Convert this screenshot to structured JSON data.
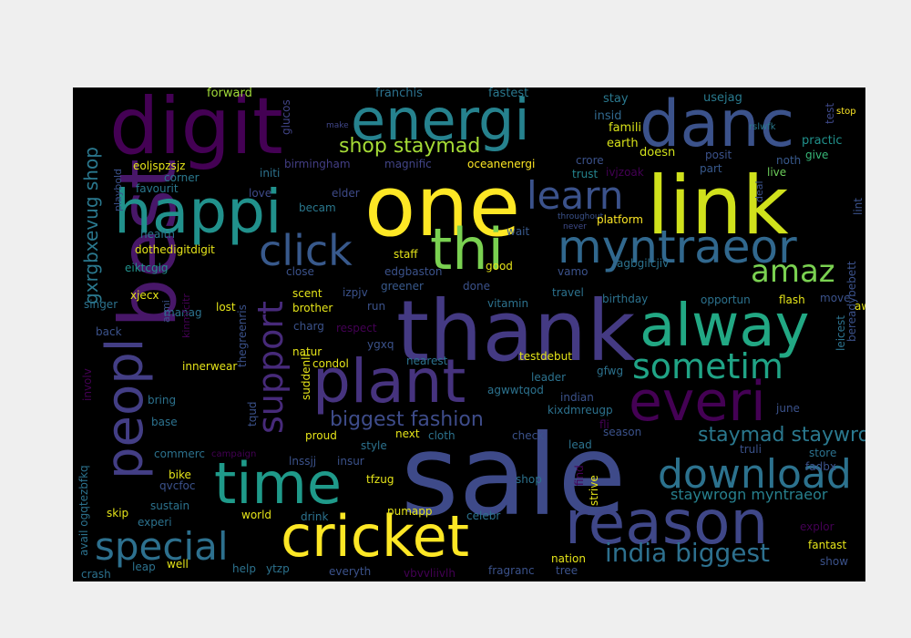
{
  "words": [
    {
      "t": "sale",
      "c": "#3e4a89"
    },
    {
      "t": "thank",
      "c": "#443a83"
    },
    {
      "t": "one",
      "c": "#fde725"
    },
    {
      "t": "link",
      "c": "#d0e11c"
    },
    {
      "t": "digit",
      "c": "#440154"
    },
    {
      "t": "best",
      "c": "#481769"
    },
    {
      "t": "energi",
      "c": "#26828e"
    },
    {
      "t": "danc",
      "c": "#3b528b"
    },
    {
      "t": "happi",
      "c": "#21918c"
    },
    {
      "t": "alway",
      "c": "#22a884"
    },
    {
      "t": "plant",
      "c": "#46337e"
    },
    {
      "t": "time",
      "c": "#1f9a8a"
    },
    {
      "t": "reason",
      "c": "#3f4788"
    },
    {
      "t": "cricket",
      "c": "#fde725"
    },
    {
      "t": "peopl",
      "c": "#433e85"
    },
    {
      "t": "everi",
      "c": "#440154"
    },
    {
      "t": "thi",
      "c": "#7ad151"
    },
    {
      "t": "myntraeor",
      "c": "#31688e"
    },
    {
      "t": "download",
      "c": "#2c728e"
    },
    {
      "t": "special",
      "c": "#2d708e"
    },
    {
      "t": "click",
      "c": "#38598c"
    },
    {
      "t": "learn",
      "c": "#3b528b"
    },
    {
      "t": "sometim",
      "c": "#20a486"
    },
    {
      "t": "amaz",
      "c": "#7ad151"
    },
    {
      "t": "support",
      "c": "#472a7a"
    },
    {
      "t": "india biggest",
      "c": "#2d708e"
    },
    {
      "t": "biggest fashion",
      "c": "#3e4c8a"
    },
    {
      "t": "staymad staywrogn",
      "c": "#2a788e"
    },
    {
      "t": "shop staymad",
      "c": "#a5db36"
    },
    {
      "t": "staywrogn myntraeor",
      "c": "#27808e"
    },
    {
      "t": "gxrgbxevug shop",
      "c": "#2a788e"
    },
    {
      "t": "forward",
      "c": "#a0da39"
    },
    {
      "t": "glucos",
      "c": "#414487"
    },
    {
      "t": "franchis",
      "c": "#2c728e"
    },
    {
      "t": "fastest",
      "c": "#2a788e"
    },
    {
      "t": "stay",
      "c": "#2a788e"
    },
    {
      "t": "usejag",
      "c": "#297a8e"
    },
    {
      "t": "test",
      "c": "#3e4989"
    },
    {
      "t": "stop",
      "c": "#fde725"
    },
    {
      "t": "make",
      "c": "#404688"
    },
    {
      "t": "insid",
      "c": "#31688e"
    },
    {
      "t": "famili",
      "c": "#d8e219"
    },
    {
      "t": "rslwfk",
      "c": "#2a788e"
    },
    {
      "t": "earth",
      "c": "#d8e219"
    },
    {
      "t": "practic",
      "c": "#21918c"
    },
    {
      "t": "eoljspzsjz",
      "c": "#e5e419"
    },
    {
      "t": "corner",
      "c": "#2a788e"
    },
    {
      "t": "initi",
      "c": "#2c728e"
    },
    {
      "t": "birmingham",
      "c": "#433e85"
    },
    {
      "t": "magnific",
      "c": "#414487"
    },
    {
      "t": "oceanenergi",
      "c": "#fde725"
    },
    {
      "t": "crore",
      "c": "#3b528b"
    },
    {
      "t": "doesn",
      "c": "#d2e21b"
    },
    {
      "t": "posit",
      "c": "#3b528b"
    },
    {
      "t": "noth",
      "c": "#38598c"
    },
    {
      "t": "give",
      "c": "#37b878"
    },
    {
      "t": "trust",
      "c": "#25848e"
    },
    {
      "t": "ivjzoak",
      "c": "#440154"
    },
    {
      "t": "part",
      "c": "#38598c"
    },
    {
      "t": "live",
      "c": "#6ccd5a"
    },
    {
      "t": "playbold",
      "c": "#3b528b"
    },
    {
      "t": "favourit",
      "c": "#2a788e"
    },
    {
      "t": "love",
      "c": "#3e4a89"
    },
    {
      "t": "elder",
      "c": "#3e4a89"
    },
    {
      "t": "becam",
      "c": "#2a788e"
    },
    {
      "t": "deal",
      "c": "#3b528b"
    },
    {
      "t": "lint",
      "c": "#3b528b"
    },
    {
      "t": "throughout",
      "c": "#3b528b"
    },
    {
      "t": "never",
      "c": "#3e4a89"
    },
    {
      "t": "platform",
      "c": "#fde725"
    },
    {
      "t": "wait",
      "c": "#38598c"
    },
    {
      "t": "health",
      "c": "#2a788e"
    },
    {
      "t": "dothedigitdigit",
      "c": "#e5e419"
    },
    {
      "t": "staff",
      "c": "#e5e419"
    },
    {
      "t": "agbgilcjiv",
      "c": "#2c728e"
    },
    {
      "t": "eiktcglg",
      "c": "#21918c"
    },
    {
      "t": "close",
      "c": "#3b528b"
    },
    {
      "t": "edgbaston",
      "c": "#3b528b"
    },
    {
      "t": "vamo",
      "c": "#3b528b"
    },
    {
      "t": "greener",
      "c": "#38598c"
    },
    {
      "t": "xjecx",
      "c": "#e5e419"
    },
    {
      "t": "scent",
      "c": "#e5e419"
    },
    {
      "t": "izpjv",
      "c": "#3b528b"
    },
    {
      "t": "done",
      "c": "#3b528b"
    },
    {
      "t": "travel",
      "c": "#2c728e"
    },
    {
      "t": "opportun",
      "c": "#2c728e"
    },
    {
      "t": "flash",
      "c": "#e5e419"
    },
    {
      "t": "move",
      "c": "#3b528b"
    },
    {
      "t": "singer",
      "c": "#2c728e"
    },
    {
      "t": "manag",
      "c": "#2c728e"
    },
    {
      "t": "lost",
      "c": "#e5e419"
    },
    {
      "t": "vitamin",
      "c": "#2c728e"
    },
    {
      "t": "birthday",
      "c": "#2c728e"
    },
    {
      "t": "await",
      "c": "#e5e419"
    },
    {
      "t": "run",
      "c": "#3b528b"
    },
    {
      "t": "brother",
      "c": "#e5e419"
    },
    {
      "t": "charg",
      "c": "#3b528b"
    },
    {
      "t": "respect",
      "c": "#440154"
    },
    {
      "t": "back",
      "c": "#3b528b"
    },
    {
      "t": "armi",
      "c": "#3b528b"
    },
    {
      "t": "ygxq",
      "c": "#3b528b"
    },
    {
      "t": "kinmfcitr",
      "c": "#440154"
    },
    {
      "t": "thegreenris",
      "c": "#3b528b"
    },
    {
      "t": "natur",
      "c": "#e5e419"
    },
    {
      "t": "condol",
      "c": "#e5e419"
    },
    {
      "t": "innerwear",
      "c": "#e5e419"
    },
    {
      "t": "nearest",
      "c": "#2c728e"
    },
    {
      "t": "testdebut",
      "c": "#e5e419"
    },
    {
      "t": "leader",
      "c": "#2c728e"
    },
    {
      "t": "gfwg",
      "c": "#2c728e"
    },
    {
      "t": "leicest",
      "c": "#2c728e"
    },
    {
      "t": "bereadybebett",
      "c": "#3b528b"
    },
    {
      "t": "involv",
      "c": "#440154"
    },
    {
      "t": "agwwtqod",
      "c": "#2c728e"
    },
    {
      "t": "bring",
      "c": "#2c728e"
    },
    {
      "t": "suddenli",
      "c": "#e5e419"
    },
    {
      "t": "indian",
      "c": "#3b528b"
    },
    {
      "t": "kixdmreugp",
      "c": "#2c728e"
    },
    {
      "t": "june",
      "c": "#3b528b"
    },
    {
      "t": "tqud",
      "c": "#3b528b"
    },
    {
      "t": "base",
      "c": "#2c728e"
    },
    {
      "t": "proud",
      "c": "#e5e419"
    },
    {
      "t": "fli",
      "c": "#440154"
    },
    {
      "t": "season",
      "c": "#3b528b"
    },
    {
      "t": "next",
      "c": "#e5e419"
    },
    {
      "t": "cloth",
      "c": "#2c728e"
    },
    {
      "t": "check",
      "c": "#3b528b"
    },
    {
      "t": "avail ogqtezbfkq",
      "c": "#2c728e"
    },
    {
      "t": "style",
      "c": "#2c728e"
    },
    {
      "t": "truli",
      "c": "#3b528b"
    },
    {
      "t": "lead",
      "c": "#2c728e"
    },
    {
      "t": "store",
      "c": "#2c728e"
    },
    {
      "t": "commerc",
      "c": "#2c728e"
    },
    {
      "t": "campaign",
      "c": "#440154"
    },
    {
      "t": "lnssjj",
      "c": "#3b528b"
    },
    {
      "t": "insur",
      "c": "#3b528b"
    },
    {
      "t": "fadbx",
      "c": "#3b528b"
    },
    {
      "t": "bike",
      "c": "#e5e419"
    },
    {
      "t": "qvcfoc",
      "c": "#3b528b"
    },
    {
      "t": "tfzug",
      "c": "#e5e419"
    },
    {
      "t": "shop",
      "c": "#2c728e"
    },
    {
      "t": "strive",
      "c": "#e5e419"
    },
    {
      "t": "find",
      "c": "#440154"
    },
    {
      "t": "sustain",
      "c": "#2c728e"
    },
    {
      "t": "skip",
      "c": "#e5e419"
    },
    {
      "t": "experi",
      "c": "#2c728e"
    },
    {
      "t": "world",
      "c": "#e5e419"
    },
    {
      "t": "drink",
      "c": "#2c728e"
    },
    {
      "t": "pumapp",
      "c": "#e5e419"
    },
    {
      "t": "celebr",
      "c": "#2c728e"
    },
    {
      "t": "explor",
      "c": "#440154"
    },
    {
      "t": "fantast",
      "c": "#e5e419"
    },
    {
      "t": "crash",
      "c": "#2c728e"
    },
    {
      "t": "leap",
      "c": "#2c728e"
    },
    {
      "t": "well",
      "c": "#e5e419"
    },
    {
      "t": "help",
      "c": "#2c728e"
    },
    {
      "t": "ytzp",
      "c": "#2c728e"
    },
    {
      "t": "everyth",
      "c": "#3b528b"
    },
    {
      "t": "vbvvliivlh",
      "c": "#440154"
    },
    {
      "t": "fragranc",
      "c": "#3b528b"
    },
    {
      "t": "tree",
      "c": "#3b528b"
    },
    {
      "t": "nation",
      "c": "#e5e419"
    },
    {
      "t": "show",
      "c": "#3b528b"
    },
    {
      "t": "good",
      "c": "#e5e419"
    }
  ]
}
